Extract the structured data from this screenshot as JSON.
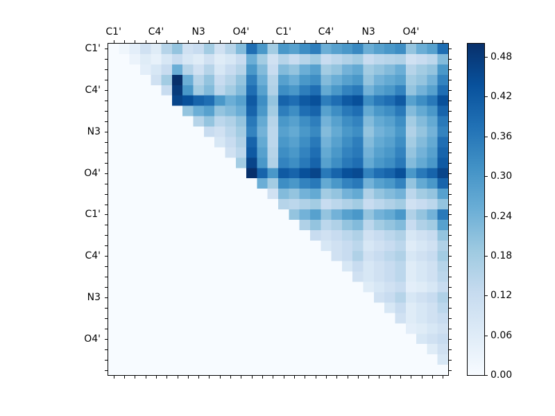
{
  "figure": {
    "background": "#ffffff",
    "axis_color": "#000000"
  },
  "chart_data": {
    "type": "heatmap",
    "title": "",
    "xlabel": "",
    "ylabel": "",
    "colormap": "Blues",
    "vmin": 0.0,
    "vmax": 0.5,
    "grid": false,
    "legend_position": "colorbar-right",
    "x_tick_labels": [
      "C1'",
      "C4'",
      "N3",
      "O4'",
      "C1'",
      "C4'",
      "N3",
      "O4'"
    ],
    "y_tick_labels": [
      "C1'",
      "C4'",
      "N3",
      "O4'",
      "C1'",
      "C4'",
      "N3",
      "O4'"
    ],
    "tick_label_step": 4,
    "n_cells": 32,
    "colorbar_ticks": [
      {
        "label": "0.48",
        "value": 0.48
      },
      {
        "label": "0.42",
        "value": 0.42
      },
      {
        "label": "0.36",
        "value": 0.36
      },
      {
        "label": "0.30",
        "value": 0.3
      },
      {
        "label": "0.24",
        "value": 0.24
      },
      {
        "label": "0.18",
        "value": 0.18
      },
      {
        "label": "0.12",
        "value": 0.12
      },
      {
        "label": "0.06",
        "value": 0.06
      },
      {
        "label": "0.00",
        "value": 0.0
      }
    ],
    "colormap_stops": [
      [
        0.0,
        "#f7fbff"
      ],
      [
        0.125,
        "#deebf7"
      ],
      [
        0.25,
        "#c6dbef"
      ],
      [
        0.375,
        "#9ecae1"
      ],
      [
        0.5,
        "#6baed6"
      ],
      [
        0.625,
        "#4292c6"
      ],
      [
        0.75,
        "#2171b5"
      ],
      [
        0.875,
        "#08519c"
      ],
      [
        1.0,
        "#08306b"
      ]
    ],
    "matrix": [
      [
        0,
        0.02,
        0.05,
        0.1,
        0.06,
        0.15,
        0.2,
        0.1,
        0.12,
        0.18,
        0.1,
        0.15,
        0.22,
        0.38,
        0.3,
        0.18,
        0.3,
        0.28,
        0.32,
        0.35,
        0.25,
        0.28,
        0.3,
        0.33,
        0.25,
        0.28,
        0.3,
        0.32,
        0.2,
        0.25,
        0.28,
        0.38
      ],
      [
        0,
        0,
        0.03,
        0.06,
        0.04,
        0.08,
        0.12,
        0.08,
        0.06,
        0.1,
        0.06,
        0.08,
        0.12,
        0.25,
        0.18,
        0.1,
        0.15,
        0.12,
        0.15,
        0.18,
        0.12,
        0.14,
        0.16,
        0.18,
        0.12,
        0.14,
        0.15,
        0.16,
        0.1,
        0.12,
        0.14,
        0.22
      ],
      [
        0,
        0,
        0,
        0.05,
        0.08,
        0.12,
        0.25,
        0.15,
        0.1,
        0.15,
        0.08,
        0.12,
        0.15,
        0.3,
        0.22,
        0.12,
        0.22,
        0.2,
        0.25,
        0.28,
        0.18,
        0.2,
        0.24,
        0.26,
        0.18,
        0.2,
        0.22,
        0.25,
        0.15,
        0.18,
        0.2,
        0.3
      ],
      [
        0,
        0,
        0,
        0,
        0.1,
        0.18,
        0.5,
        0.25,
        0.15,
        0.2,
        0.12,
        0.15,
        0.2,
        0.35,
        0.25,
        0.15,
        0.28,
        0.25,
        0.3,
        0.32,
        0.22,
        0.25,
        0.28,
        0.3,
        0.2,
        0.24,
        0.26,
        0.28,
        0.18,
        0.2,
        0.24,
        0.34
      ],
      [
        0,
        0,
        0,
        0,
        0,
        0.12,
        0.48,
        0.3,
        0.18,
        0.22,
        0.14,
        0.18,
        0.22,
        0.38,
        0.28,
        0.16,
        0.32,
        0.3,
        0.35,
        0.38,
        0.26,
        0.3,
        0.34,
        0.36,
        0.24,
        0.28,
        0.3,
        0.34,
        0.2,
        0.24,
        0.28,
        0.38
      ],
      [
        0,
        0,
        0,
        0,
        0,
        0,
        0.46,
        0.44,
        0.4,
        0.38,
        0.3,
        0.25,
        0.28,
        0.42,
        0.32,
        0.2,
        0.4,
        0.38,
        0.42,
        0.44,
        0.35,
        0.38,
        0.42,
        0.44,
        0.32,
        0.36,
        0.38,
        0.42,
        0.28,
        0.32,
        0.36,
        0.44
      ],
      [
        0,
        0,
        0,
        0,
        0,
        0,
        0,
        0.2,
        0.25,
        0.28,
        0.2,
        0.22,
        0.25,
        0.4,
        0.3,
        0.18,
        0.35,
        0.32,
        0.38,
        0.4,
        0.28,
        0.32,
        0.36,
        0.38,
        0.26,
        0.3,
        0.32,
        0.36,
        0.22,
        0.26,
        0.3,
        0.4
      ],
      [
        0,
        0,
        0,
        0,
        0,
        0,
        0,
        0,
        0.15,
        0.2,
        0.14,
        0.16,
        0.2,
        0.36,
        0.26,
        0.15,
        0.3,
        0.28,
        0.32,
        0.35,
        0.24,
        0.28,
        0.32,
        0.34,
        0.22,
        0.26,
        0.28,
        0.32,
        0.18,
        0.22,
        0.26,
        0.36
      ],
      [
        0,
        0,
        0,
        0,
        0,
        0,
        0,
        0,
        0,
        0.12,
        0.1,
        0.14,
        0.18,
        0.34,
        0.24,
        0.14,
        0.28,
        0.26,
        0.3,
        0.33,
        0.22,
        0.26,
        0.3,
        0.32,
        0.2,
        0.24,
        0.26,
        0.3,
        0.16,
        0.2,
        0.24,
        0.34
      ],
      [
        0,
        0,
        0,
        0,
        0,
        0,
        0,
        0,
        0,
        0,
        0.08,
        0.12,
        0.16,
        0.4,
        0.26,
        0.14,
        0.3,
        0.28,
        0.32,
        0.36,
        0.24,
        0.28,
        0.32,
        0.35,
        0.22,
        0.26,
        0.28,
        0.32,
        0.18,
        0.22,
        0.26,
        0.38
      ],
      [
        0,
        0,
        0,
        0,
        0,
        0,
        0,
        0,
        0,
        0,
        0,
        0.1,
        0.14,
        0.42,
        0.28,
        0.15,
        0.32,
        0.3,
        0.34,
        0.38,
        0.26,
        0.3,
        0.34,
        0.36,
        0.24,
        0.28,
        0.3,
        0.34,
        0.2,
        0.24,
        0.28,
        0.4
      ],
      [
        0,
        0,
        0,
        0,
        0,
        0,
        0,
        0,
        0,
        0,
        0,
        0,
        0.18,
        0.46,
        0.3,
        0.16,
        0.34,
        0.32,
        0.36,
        0.4,
        0.28,
        0.32,
        0.36,
        0.38,
        0.26,
        0.3,
        0.32,
        0.36,
        0.22,
        0.26,
        0.3,
        0.42
      ],
      [
        0,
        0,
        0,
        0,
        0,
        0,
        0,
        0,
        0,
        0,
        0,
        0,
        0,
        0.5,
        0.4,
        0.3,
        0.42,
        0.4,
        0.44,
        0.46,
        0.36,
        0.4,
        0.44,
        0.45,
        0.34,
        0.38,
        0.4,
        0.44,
        0.3,
        0.36,
        0.4,
        0.46
      ],
      [
        0,
        0,
        0,
        0,
        0,
        0,
        0,
        0,
        0,
        0,
        0,
        0,
        0,
        0,
        0.25,
        0.18,
        0.32,
        0.3,
        0.34,
        0.36,
        0.26,
        0.3,
        0.34,
        0.36,
        0.24,
        0.28,
        0.3,
        0.34,
        0.2,
        0.26,
        0.3,
        0.4
      ],
      [
        0,
        0,
        0,
        0,
        0,
        0,
        0,
        0,
        0,
        0,
        0,
        0,
        0,
        0,
        0,
        0.1,
        0.22,
        0.2,
        0.24,
        0.26,
        0.18,
        0.2,
        0.24,
        0.26,
        0.16,
        0.2,
        0.22,
        0.24,
        0.14,
        0.18,
        0.2,
        0.28
      ],
      [
        0,
        0,
        0,
        0,
        0,
        0,
        0,
        0,
        0,
        0,
        0,
        0,
        0,
        0,
        0,
        0,
        0.15,
        0.14,
        0.16,
        0.18,
        0.12,
        0.14,
        0.16,
        0.18,
        0.12,
        0.14,
        0.16,
        0.18,
        0.1,
        0.12,
        0.14,
        0.2
      ],
      [
        0,
        0,
        0,
        0,
        0,
        0,
        0,
        0,
        0,
        0,
        0,
        0,
        0,
        0,
        0,
        0,
        0,
        0.2,
        0.24,
        0.28,
        0.2,
        0.24,
        0.28,
        0.3,
        0.2,
        0.24,
        0.26,
        0.3,
        0.16,
        0.2,
        0.24,
        0.36
      ],
      [
        0,
        0,
        0,
        0,
        0,
        0,
        0,
        0,
        0,
        0,
        0,
        0,
        0,
        0,
        0,
        0,
        0,
        0,
        0.16,
        0.2,
        0.14,
        0.16,
        0.2,
        0.22,
        0.14,
        0.18,
        0.2,
        0.22,
        0.12,
        0.16,
        0.18,
        0.28
      ],
      [
        0,
        0,
        0,
        0,
        0,
        0,
        0,
        0,
        0,
        0,
        0,
        0,
        0,
        0,
        0,
        0,
        0,
        0,
        0,
        0.12,
        0.1,
        0.12,
        0.14,
        0.16,
        0.1,
        0.12,
        0.14,
        0.16,
        0.08,
        0.1,
        0.12,
        0.2
      ],
      [
        0,
        0,
        0,
        0,
        0,
        0,
        0,
        0,
        0,
        0,
        0,
        0,
        0,
        0,
        0,
        0,
        0,
        0,
        0,
        0,
        0.08,
        0.1,
        0.12,
        0.14,
        0.08,
        0.1,
        0.12,
        0.14,
        0.06,
        0.08,
        0.1,
        0.16
      ],
      [
        0,
        0,
        0,
        0,
        0,
        0,
        0,
        0,
        0,
        0,
        0,
        0,
        0,
        0,
        0,
        0,
        0,
        0,
        0,
        0,
        0,
        0.1,
        0.12,
        0.16,
        0.1,
        0.12,
        0.14,
        0.16,
        0.08,
        0.1,
        0.12,
        0.18
      ],
      [
        0,
        0,
        0,
        0,
        0,
        0,
        0,
        0,
        0,
        0,
        0,
        0,
        0,
        0,
        0,
        0,
        0,
        0,
        0,
        0,
        0,
        0,
        0.08,
        0.12,
        0.08,
        0.1,
        0.12,
        0.14,
        0.06,
        0.08,
        0.1,
        0.15
      ],
      [
        0,
        0,
        0,
        0,
        0,
        0,
        0,
        0,
        0,
        0,
        0,
        0,
        0,
        0,
        0,
        0,
        0,
        0,
        0,
        0,
        0,
        0,
        0,
        0.1,
        0.08,
        0.1,
        0.12,
        0.14,
        0.06,
        0.08,
        0.1,
        0.14
      ],
      [
        0,
        0,
        0,
        0,
        0,
        0,
        0,
        0,
        0,
        0,
        0,
        0,
        0,
        0,
        0,
        0,
        0,
        0,
        0,
        0,
        0,
        0,
        0,
        0,
        0.06,
        0.08,
        0.1,
        0.12,
        0.05,
        0.06,
        0.08,
        0.12
      ],
      [
        0,
        0,
        0,
        0,
        0,
        0,
        0,
        0,
        0,
        0,
        0,
        0,
        0,
        0,
        0,
        0,
        0,
        0,
        0,
        0,
        0,
        0,
        0,
        0,
        0,
        0.1,
        0.12,
        0.15,
        0.08,
        0.1,
        0.12,
        0.16
      ],
      [
        0,
        0,
        0,
        0,
        0,
        0,
        0,
        0,
        0,
        0,
        0,
        0,
        0,
        0,
        0,
        0,
        0,
        0,
        0,
        0,
        0,
        0,
        0,
        0,
        0,
        0,
        0.08,
        0.12,
        0.06,
        0.08,
        0.1,
        0.14
      ],
      [
        0,
        0,
        0,
        0,
        0,
        0,
        0,
        0,
        0,
        0,
        0,
        0,
        0,
        0,
        0,
        0,
        0,
        0,
        0,
        0,
        0,
        0,
        0,
        0,
        0,
        0,
        0,
        0.1,
        0.06,
        0.08,
        0.1,
        0.12
      ],
      [
        0,
        0,
        0,
        0,
        0,
        0,
        0,
        0,
        0,
        0,
        0,
        0,
        0,
        0,
        0,
        0,
        0,
        0,
        0,
        0,
        0,
        0,
        0,
        0,
        0,
        0,
        0,
        0,
        0.05,
        0.06,
        0.08,
        0.1
      ],
      [
        0,
        0,
        0,
        0,
        0,
        0,
        0,
        0,
        0,
        0,
        0,
        0,
        0,
        0,
        0,
        0,
        0,
        0,
        0,
        0,
        0,
        0,
        0,
        0,
        0,
        0,
        0,
        0,
        0,
        0.08,
        0.1,
        0.12
      ],
      [
        0,
        0,
        0,
        0,
        0,
        0,
        0,
        0,
        0,
        0,
        0,
        0,
        0,
        0,
        0,
        0,
        0,
        0,
        0,
        0,
        0,
        0,
        0,
        0,
        0,
        0,
        0,
        0,
        0,
        0,
        0.06,
        0.1
      ],
      [
        0,
        0,
        0,
        0,
        0,
        0,
        0,
        0,
        0,
        0,
        0,
        0,
        0,
        0,
        0,
        0,
        0,
        0,
        0,
        0,
        0,
        0,
        0,
        0,
        0,
        0,
        0,
        0,
        0,
        0,
        0,
        0.08
      ],
      [
        0,
        0,
        0,
        0,
        0,
        0,
        0,
        0,
        0,
        0,
        0,
        0,
        0,
        0,
        0,
        0,
        0,
        0,
        0,
        0,
        0,
        0,
        0,
        0,
        0,
        0,
        0,
        0,
        0,
        0,
        0,
        0
      ]
    ]
  }
}
